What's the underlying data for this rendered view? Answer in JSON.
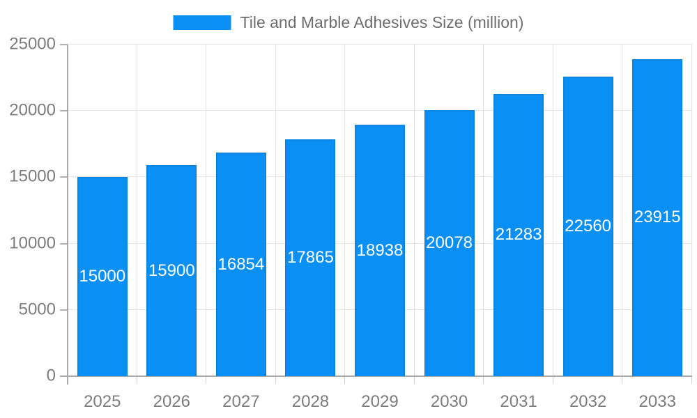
{
  "chart_data": {
    "type": "bar",
    "title": "Tile and Marble Adhesives Size (million)",
    "categories": [
      "2025",
      "2026",
      "2027",
      "2028",
      "2029",
      "2030",
      "2031",
      "2032",
      "2033"
    ],
    "values": [
      15000,
      15900,
      16854,
      17865,
      18938,
      20078,
      21283,
      22560,
      23915
    ],
    "xlabel": "",
    "ylabel": "",
    "ylim": [
      0,
      25000
    ],
    "yticks": [
      0,
      5000,
      10000,
      15000,
      20000,
      25000
    ],
    "grid": true,
    "legend_position": "top-center",
    "bar_color": "#0a90f4",
    "bar_border_color": "#0c85e0",
    "value_label_color": "#ffffff",
    "axis_color": "#a8a8a8",
    "gridline_color": "#e5e5e5",
    "tick_label_color": "#7d7d7d",
    "legend_text_color": "#6e6e6e",
    "background_color": "#ffffff"
  }
}
